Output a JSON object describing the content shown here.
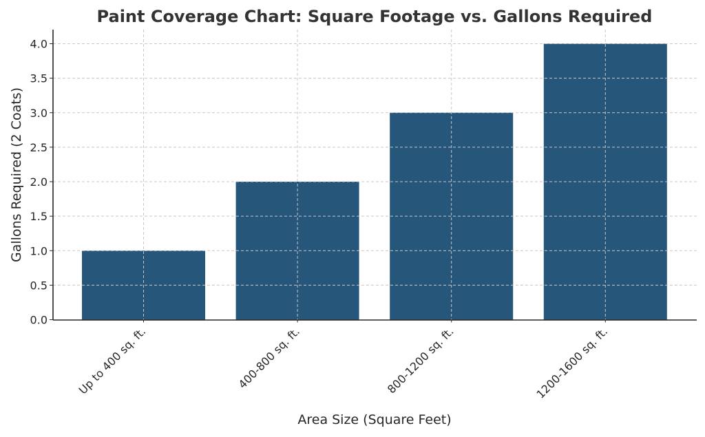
{
  "chart_data": {
    "type": "bar",
    "title": "Paint Coverage Chart: Square Footage vs. Gallons Required",
    "xlabel": "Area Size (Square Feet)",
    "ylabel": "Gallons Required (2 Coats)",
    "categories": [
      "Up to 400 sq. ft.",
      "400-800 sq. ft.",
      "800-1200 sq. ft.",
      "1200-1600 sq. ft."
    ],
    "values": [
      1,
      2,
      3,
      4
    ],
    "ylim": [
      0,
      4.2
    ],
    "yticks": [
      "0.0",
      "0.5",
      "1.0",
      "1.5",
      "2.0",
      "2.5",
      "3.0",
      "3.5",
      "4.0"
    ],
    "grid": true,
    "legend": null,
    "bar_color": "#27567B",
    "xtick_rotation": 45
  }
}
